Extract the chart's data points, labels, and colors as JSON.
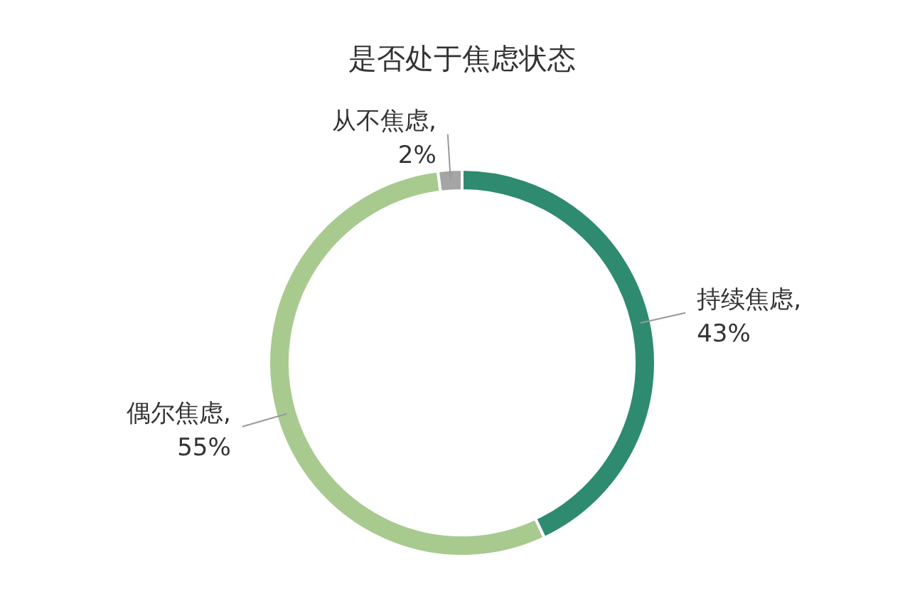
{
  "chart_data": {
    "type": "donut",
    "title": "是否处于焦虑状态",
    "categories": [
      "持续焦虑",
      "偶尔焦虑",
      "从不焦虑"
    ],
    "values": [
      43,
      55,
      2
    ],
    "colors": [
      "#2e8b6f",
      "#a8ca8f",
      "#a5a5a5"
    ],
    "value_labels": [
      ", 43%",
      ", 55%",
      ", 2%"
    ]
  }
}
